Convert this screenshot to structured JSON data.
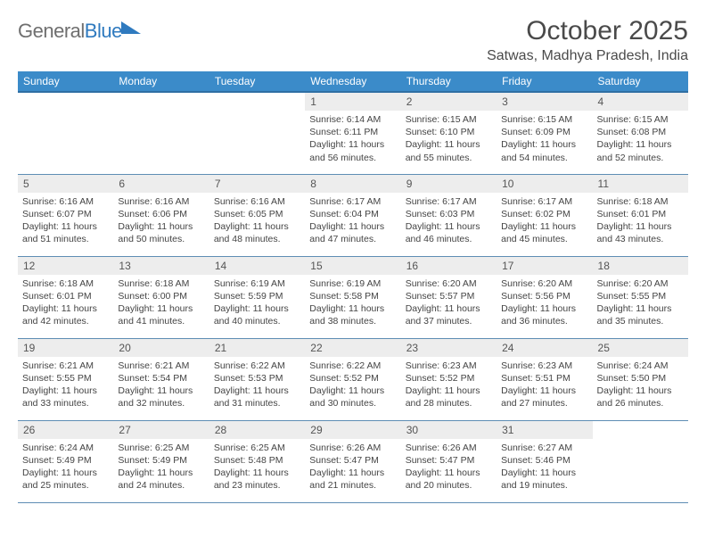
{
  "brand": {
    "general": "General",
    "blue": "Blue",
    "tri_color": "#2f7abf"
  },
  "title": "October 2025",
  "location": "Satwas, Madhya Pradesh, India",
  "header_bg": "#3b8bc9",
  "weekdays": [
    "Sunday",
    "Monday",
    "Tuesday",
    "Wednesday",
    "Thursday",
    "Friday",
    "Saturday"
  ],
  "weeks": [
    [
      null,
      null,
      null,
      {
        "n": "1",
        "sr": "6:14 AM",
        "ss": "6:11 PM",
        "d": "11 hours and 56 minutes."
      },
      {
        "n": "2",
        "sr": "6:15 AM",
        "ss": "6:10 PM",
        "d": "11 hours and 55 minutes."
      },
      {
        "n": "3",
        "sr": "6:15 AM",
        "ss": "6:09 PM",
        "d": "11 hours and 54 minutes."
      },
      {
        "n": "4",
        "sr": "6:15 AM",
        "ss": "6:08 PM",
        "d": "11 hours and 52 minutes."
      }
    ],
    [
      {
        "n": "5",
        "sr": "6:16 AM",
        "ss": "6:07 PM",
        "d": "11 hours and 51 minutes."
      },
      {
        "n": "6",
        "sr": "6:16 AM",
        "ss": "6:06 PM",
        "d": "11 hours and 50 minutes."
      },
      {
        "n": "7",
        "sr": "6:16 AM",
        "ss": "6:05 PM",
        "d": "11 hours and 48 minutes."
      },
      {
        "n": "8",
        "sr": "6:17 AM",
        "ss": "6:04 PM",
        "d": "11 hours and 47 minutes."
      },
      {
        "n": "9",
        "sr": "6:17 AM",
        "ss": "6:03 PM",
        "d": "11 hours and 46 minutes."
      },
      {
        "n": "10",
        "sr": "6:17 AM",
        "ss": "6:02 PM",
        "d": "11 hours and 45 minutes."
      },
      {
        "n": "11",
        "sr": "6:18 AM",
        "ss": "6:01 PM",
        "d": "11 hours and 43 minutes."
      }
    ],
    [
      {
        "n": "12",
        "sr": "6:18 AM",
        "ss": "6:01 PM",
        "d": "11 hours and 42 minutes."
      },
      {
        "n": "13",
        "sr": "6:18 AM",
        "ss": "6:00 PM",
        "d": "11 hours and 41 minutes."
      },
      {
        "n": "14",
        "sr": "6:19 AM",
        "ss": "5:59 PM",
        "d": "11 hours and 40 minutes."
      },
      {
        "n": "15",
        "sr": "6:19 AM",
        "ss": "5:58 PM",
        "d": "11 hours and 38 minutes."
      },
      {
        "n": "16",
        "sr": "6:20 AM",
        "ss": "5:57 PM",
        "d": "11 hours and 37 minutes."
      },
      {
        "n": "17",
        "sr": "6:20 AM",
        "ss": "5:56 PM",
        "d": "11 hours and 36 minutes."
      },
      {
        "n": "18",
        "sr": "6:20 AM",
        "ss": "5:55 PM",
        "d": "11 hours and 35 minutes."
      }
    ],
    [
      {
        "n": "19",
        "sr": "6:21 AM",
        "ss": "5:55 PM",
        "d": "11 hours and 33 minutes."
      },
      {
        "n": "20",
        "sr": "6:21 AM",
        "ss": "5:54 PM",
        "d": "11 hours and 32 minutes."
      },
      {
        "n": "21",
        "sr": "6:22 AM",
        "ss": "5:53 PM",
        "d": "11 hours and 31 minutes."
      },
      {
        "n": "22",
        "sr": "6:22 AM",
        "ss": "5:52 PM",
        "d": "11 hours and 30 minutes."
      },
      {
        "n": "23",
        "sr": "6:23 AM",
        "ss": "5:52 PM",
        "d": "11 hours and 28 minutes."
      },
      {
        "n": "24",
        "sr": "6:23 AM",
        "ss": "5:51 PM",
        "d": "11 hours and 27 minutes."
      },
      {
        "n": "25",
        "sr": "6:24 AM",
        "ss": "5:50 PM",
        "d": "11 hours and 26 minutes."
      }
    ],
    [
      {
        "n": "26",
        "sr": "6:24 AM",
        "ss": "5:49 PM",
        "d": "11 hours and 25 minutes."
      },
      {
        "n": "27",
        "sr": "6:25 AM",
        "ss": "5:49 PM",
        "d": "11 hours and 24 minutes."
      },
      {
        "n": "28",
        "sr": "6:25 AM",
        "ss": "5:48 PM",
        "d": "11 hours and 23 minutes."
      },
      {
        "n": "29",
        "sr": "6:26 AM",
        "ss": "5:47 PM",
        "d": "11 hours and 21 minutes."
      },
      {
        "n": "30",
        "sr": "6:26 AM",
        "ss": "5:47 PM",
        "d": "11 hours and 20 minutes."
      },
      {
        "n": "31",
        "sr": "6:27 AM",
        "ss": "5:46 PM",
        "d": "11 hours and 19 minutes."
      },
      null
    ]
  ],
  "labels": {
    "sunrise": "Sunrise:",
    "sunset": "Sunset:",
    "daylight": "Daylight:"
  }
}
